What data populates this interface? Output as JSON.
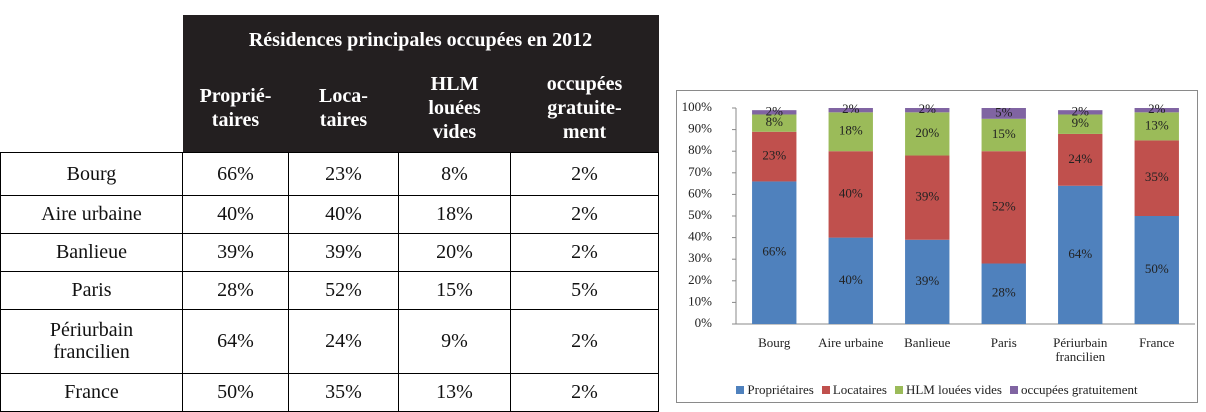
{
  "table": {
    "title": "Résidences principales occupées en 2012",
    "columns": [
      [
        "Proprié-",
        "taires"
      ],
      [
        "Loca-",
        "taires"
      ],
      [
        "HLM",
        "louées",
        "vides"
      ],
      [
        "occupées",
        "gratuite-",
        "ment"
      ]
    ],
    "rows": [
      {
        "label": "Bourg",
        "values": [
          "66%",
          "23%",
          "8%",
          "2%"
        ]
      },
      {
        "label": "Aire urbaine",
        "values": [
          "40%",
          "40%",
          "18%",
          "2%"
        ]
      },
      {
        "label": "Banlieue",
        "values": [
          "39%",
          "39%",
          "20%",
          "2%"
        ]
      },
      {
        "label": "Paris",
        "values": [
          "28%",
          "52%",
          "15%",
          "5%"
        ]
      },
      {
        "label": "Périurbain francilien",
        "values": [
          "64%",
          "24%",
          "9%",
          "2%"
        ]
      },
      {
        "label": "France",
        "values": [
          "50%",
          "35%",
          "13%",
          "2%"
        ]
      }
    ]
  },
  "chart_data": {
    "type": "stacked_bar",
    "categories": [
      "Bourg",
      "Aire urbaine",
      "Banlieue",
      "Paris",
      "Périurbain francilien",
      "France"
    ],
    "series": [
      {
        "name": "Propriétaires",
        "color": "#4f81bd",
        "values": [
          66,
          40,
          39,
          28,
          64,
          50
        ],
        "value_labels": [
          "66%",
          "40%",
          "39%",
          "28%",
          "64%",
          "50%"
        ]
      },
      {
        "name": "Locataires",
        "color": "#c0504d",
        "values": [
          23,
          40,
          39,
          52,
          24,
          35
        ],
        "value_labels": [
          "23%",
          "40%",
          "39%",
          "52%",
          "24%",
          "35%"
        ]
      },
      {
        "name": "HLM louées vides",
        "color": "#9bbb59",
        "values": [
          8,
          18,
          20,
          15,
          9,
          13
        ],
        "value_labels": [
          "8%",
          "18%",
          "20%",
          "15%",
          "9%",
          "13%"
        ]
      },
      {
        "name": "occupées gratuitement",
        "color": "#8064a2",
        "values": [
          2,
          2,
          2,
          5,
          2,
          2
        ],
        "value_labels": [
          "2%",
          "2%",
          "2%",
          "5%",
          "2%",
          "2%"
        ]
      }
    ],
    "ylim": [
      0,
      100
    ],
    "yticks": [
      {
        "value": 0,
        "label": "0%"
      },
      {
        "value": 10,
        "label": "10%"
      },
      {
        "value": 20,
        "label": "20%"
      },
      {
        "value": 30,
        "label": "30%"
      },
      {
        "value": 40,
        "label": "40%"
      },
      {
        "value": 50,
        "label": "50%"
      },
      {
        "value": 60,
        "label": "60%"
      },
      {
        "value": 70,
        "label": "70%"
      },
      {
        "value": 80,
        "label": "80%"
      },
      {
        "value": 90,
        "label": "90%"
      },
      {
        "value": 100,
        "label": "100%"
      }
    ],
    "legend": "bottom"
  }
}
